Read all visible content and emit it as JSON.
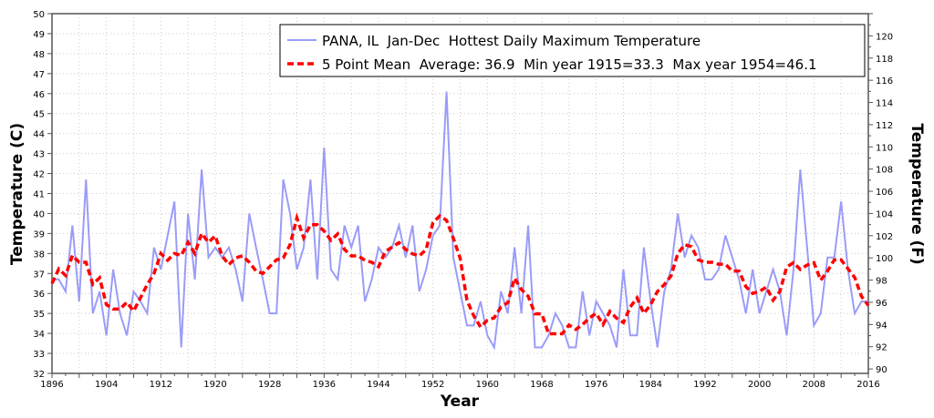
{
  "chart_data": {
    "type": "line",
    "title": "PANA, IL  Jan-Dec  Hottest Daily Maximum Temperature",
    "xlabel": "Year",
    "ylabel": "Temperature (C)",
    "ylabel_right": "Temperature (F)",
    "xlim": [
      1896,
      2016
    ],
    "ylim": [
      32,
      50
    ],
    "ylim_right_f": [
      89.6,
      122
    ],
    "x_ticks": [
      1896,
      1904,
      1912,
      1920,
      1928,
      1936,
      1944,
      1952,
      1960,
      1968,
      1976,
      1984,
      1992,
      2000,
      2008,
      2016
    ],
    "y_ticks": [
      32,
      33,
      34,
      35,
      36,
      37,
      38,
      39,
      40,
      41,
      42,
      43,
      44,
      45,
      46,
      47,
      48,
      49,
      50
    ],
    "y_right_ticks": [
      90,
      92,
      94,
      96,
      98,
      100,
      102,
      104,
      106,
      108,
      110,
      112,
      114,
      116,
      118,
      120
    ],
    "grid": true,
    "legend_position": "top-right",
    "series": [
      {
        "name": "PANA, IL  Jan-Dec  Hottest Daily Maximum Temperature",
        "color": "#9a9cf8",
        "start_year": 1896,
        "values": [
          36.7,
          36.7,
          36.1,
          39.4,
          35.6,
          41.7,
          35.0,
          36.1,
          33.9,
          37.2,
          35.0,
          33.9,
          36.1,
          35.6,
          35.0,
          38.3,
          37.2,
          38.9,
          40.6,
          33.3,
          40.0,
          36.7,
          42.2,
          37.8,
          38.3,
          37.8,
          38.3,
          37.2,
          35.6,
          40.0,
          38.3,
          36.7,
          35.0,
          35.0,
          41.7,
          40.0,
          37.2,
          38.3,
          41.7,
          36.7,
          43.3,
          37.2,
          36.7,
          39.4,
          38.3,
          39.4,
          35.6,
          36.7,
          38.3,
          37.8,
          38.3,
          39.4,
          37.8,
          39.4,
          36.1,
          37.2,
          38.9,
          39.4,
          46.1,
          37.8,
          36.1,
          34.4,
          34.4,
          35.6,
          33.9,
          33.3,
          36.1,
          35.0,
          38.3,
          35.0,
          39.4,
          33.3,
          33.3,
          33.9,
          35.0,
          34.4,
          33.3,
          33.3,
          36.1,
          33.9,
          35.6,
          35.0,
          34.4,
          33.3,
          37.2,
          33.9,
          33.9,
          38.3,
          35.6,
          33.3,
          36.1,
          37.2,
          40.0,
          37.8,
          38.9,
          38.3,
          36.7,
          36.7,
          37.2,
          38.9,
          37.8,
          36.7,
          35.0,
          37.2,
          35.0,
          36.1,
          37.2,
          36.1,
          33.9,
          37.2,
          42.2,
          38.3,
          34.4,
          35.0,
          37.8,
          37.8,
          40.6,
          37.2,
          35.0,
          35.6,
          35.6
        ]
      },
      {
        "name": "5 Point Mean  Average: 36.9  Min year 1915=33.3  Max year 1954=46.1",
        "color": "#ff0000",
        "window": 5
      }
    ]
  }
}
